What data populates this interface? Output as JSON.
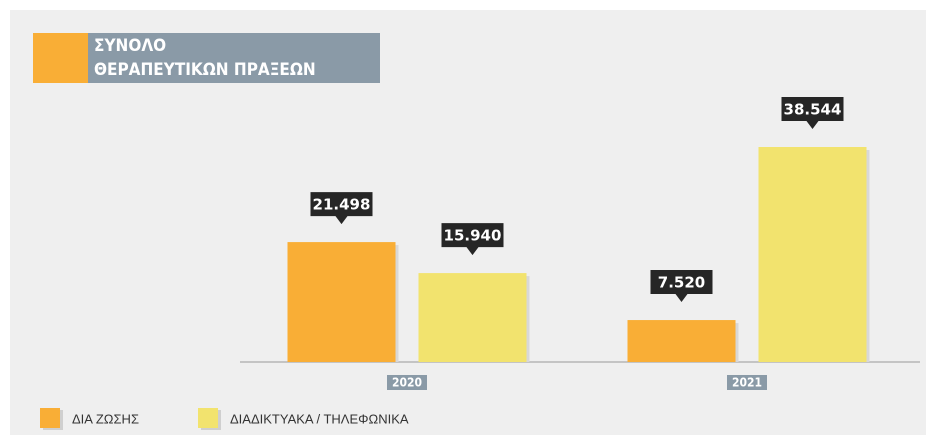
{
  "chart_data": {
    "type": "bar",
    "title": [
      "ΣΥΝΟΛΟ",
      "ΘΕΡΑΠΕΥΤΙΚΩΝ ΠΡΑΞΕΩΝ"
    ],
    "categories": [
      "2020",
      "2021"
    ],
    "series": [
      {
        "name": "ΔΙΑ ΖΩΣΗΣ",
        "color": "#f9ae36",
        "values": [
          21498,
          7520
        ],
        "value_labels": [
          "21.498",
          "7.520"
        ]
      },
      {
        "name": "ΔΙΑΔΙΚΤΥΑΚΑ / ΤΗΛΕΦΩΝΙΚΑ",
        "color": "#f2e36e",
        "values": [
          15940,
          38544
        ],
        "value_labels": [
          "15.940",
          "38.544"
        ]
      }
    ]
  }
}
